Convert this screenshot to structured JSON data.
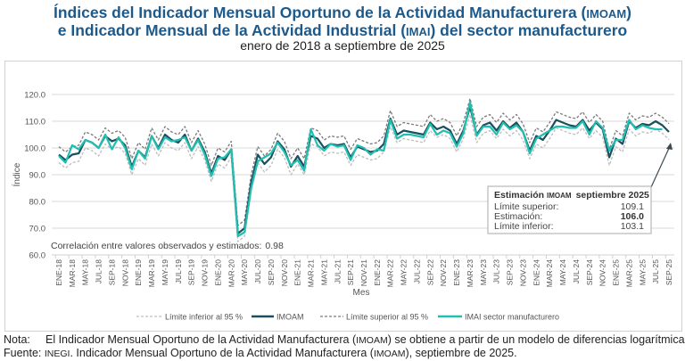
{
  "title": {
    "line1_a": "Índices del Indicador Mensual Oportuno de la Actividad Manufacturera (",
    "line1_abbr": "IMOAM",
    "line1_b": ")",
    "line2_a": "e Indicador Mensual de la Actividad Industrial (",
    "line2_abbr": "IMAI",
    "line2_b": ") del sector manufacturero",
    "subtitle": "enero de 2018 a septiembre de 2025"
  },
  "colors": {
    "imoam": "#1b4f5e",
    "imai": "#20bfb0",
    "upper": "#7a7a7a",
    "lower": "#bdbdbd",
    "title": "#1d5a8c"
  },
  "chart_data": {
    "type": "line",
    "xlabel": "Mes",
    "ylabel": "Índice",
    "ylim": [
      60,
      120
    ],
    "yticks": [
      "60.0",
      "70.0",
      "80.0",
      "90.0",
      "100.0",
      "110.0",
      "120.0"
    ],
    "grid": true,
    "legend_placement": "bottom",
    "x_ticks": [
      "ENE-18",
      "MAR-18",
      "MAY-18",
      "JUL-18",
      "SEP-18",
      "NOV-18",
      "ENE-19",
      "MAR-19",
      "MAY-19",
      "JUL-19",
      "SEP-19",
      "NOV-19",
      "ENE-20",
      "MAR-20",
      "MAY-20",
      "JUL-20",
      "SEP-20",
      "NOV-20",
      "ENE-21",
      "MAR-21",
      "MAY-21",
      "JUL-21",
      "SEP-21",
      "NOV-21",
      "ENE-22",
      "MAR-22",
      "MAY-22",
      "JUL-22",
      "SEP-22",
      "NOV-22",
      "ENE-23",
      "MAR-23",
      "MAY-23",
      "JUL-23",
      "SEP-23",
      "NOV-23",
      "ENE-24",
      "MAR-24",
      "MAY-24",
      "JUL-24",
      "SEP-24",
      "NOV-24",
      "ENE-25",
      "MAR-25",
      "MAY-25",
      "JUL-25",
      "SEP-25"
    ],
    "x_start": "2018-01",
    "series": [
      {
        "name": "Límite inferior al 95 %",
        "key": "lower",
        "style": "dashed",
        "values": [
          94.5,
          92.5,
          94.5,
          95,
          100,
          99,
          97,
          101.5,
          99.5,
          100.5,
          98,
          90,
          96,
          93.5,
          101.5,
          97,
          102,
          100,
          99,
          102,
          96,
          100.5,
          95.5,
          87.5,
          94,
          92.5,
          96.5,
          65,
          67,
          84,
          94.5,
          91,
          93.5,
          99.5,
          96.5,
          90,
          94,
          90,
          101.5,
          100.5,
          97,
          98.5,
          98,
          98.5,
          93.5,
          97.5,
          96.5,
          95.5,
          96,
          98.5,
          108,
          102,
          103.5,
          103,
          102.5,
          102,
          106.5,
          104,
          105,
          103.5,
          98.5,
          103.5,
          112.5,
          102,
          105.5,
          106.5,
          103.5,
          107,
          104.5,
          106.5,
          103,
          96,
          101.5,
          100,
          103.5,
          107.5,
          106.5,
          105.5,
          105,
          107.5,
          103.5,
          106.5,
          104,
          93.5,
          100.5,
          98.5,
          107,
          104.5,
          106,
          105.5,
          107,
          105.5,
          103.1
        ]
      },
      {
        "name": "IMOAM",
        "key": "imoam",
        "style": "solid",
        "values": [
          97.5,
          95.5,
          97.5,
          98,
          103,
          102,
          100,
          104.5,
          102.5,
          103.5,
          101,
          93,
          99,
          96.5,
          104.5,
          100,
          105,
          103,
          102,
          105,
          99,
          103.5,
          98.5,
          90.5,
          97,
          95.5,
          99.5,
          68,
          70,
          87,
          97.5,
          94,
          96.5,
          102.5,
          99.5,
          93,
          97,
          93,
          104.5,
          103.5,
          100,
          101.5,
          101,
          101.5,
          96.5,
          100.5,
          99.5,
          98.5,
          99,
          101.5,
          111,
          105,
          106.5,
          106,
          105.5,
          105,
          109.5,
          107,
          108,
          106.5,
          101.5,
          106.5,
          115.5,
          105,
          108.5,
          109.5,
          106.5,
          110,
          107.5,
          109.5,
          106,
          99,
          104.5,
          103,
          106.5,
          110.5,
          109.5,
          108.5,
          108,
          110.5,
          106.5,
          109.5,
          107,
          96.5,
          103.5,
          101.5,
          110,
          107.5,
          109,
          108.5,
          110,
          108.5,
          106
        ]
      },
      {
        "name": "Límite superior al 95 %",
        "key": "upper",
        "style": "dashed",
        "values": [
          100.5,
          98.5,
          100.5,
          101,
          106,
          105,
          103,
          107.5,
          105.5,
          106.5,
          104,
          96,
          102,
          99.5,
          107.5,
          103,
          108,
          106,
          105,
          108,
          102,
          106.5,
          101.5,
          93.5,
          100,
          98.5,
          102.5,
          71,
          73,
          90,
          100.5,
          97,
          99.5,
          105.5,
          102.5,
          96,
          100,
          96,
          107.5,
          106.5,
          103,
          104.5,
          104,
          104.5,
          99.5,
          103.5,
          102.5,
          101.5,
          102,
          104.5,
          114,
          108,
          109.5,
          109,
          108.5,
          108,
          112.5,
          110,
          111,
          109.5,
          104.5,
          109.5,
          118.5,
          108,
          111.5,
          112.5,
          109.5,
          113,
          110.5,
          112.5,
          109,
          102,
          107.5,
          106,
          109.5,
          113.5,
          112.5,
          111.5,
          111,
          113.5,
          109.5,
          112.5,
          110,
          99.5,
          106.5,
          104.5,
          113,
          110.5,
          112,
          111.5,
          113,
          111.5,
          109.1
        ]
      },
      {
        "name": "IMAI sector manufacturero",
        "key": "imai",
        "style": "solid",
        "values": [
          97,
          94.5,
          101,
          99.5,
          103,
          102,
          100,
          105,
          99.5,
          104,
          100,
          92,
          99,
          96,
          104.5,
          99.5,
          104,
          102.5,
          103,
          104,
          99,
          103,
          97.5,
          89.5,
          96,
          96.5,
          99.5,
          67,
          68.5,
          85,
          95,
          96.5,
          98,
          102,
          98.5,
          93.5,
          95.5,
          91.5,
          107,
          101,
          99,
          101.5,
          100.5,
          101,
          95.5,
          101,
          100,
          97.5,
          99.5,
          99,
          110.5,
          103.5,
          105,
          105,
          104.5,
          104,
          109,
          105,
          106.5,
          105.5,
          100.5,
          105.5,
          117,
          104.5,
          108,
          108,
          105,
          109.5,
          107,
          108.5,
          106,
          98,
          103.5,
          105,
          106.5,
          108,
          108,
          107.5,
          107.5,
          110,
          105,
          110,
          107.5,
          99,
          103,
          103,
          110.5,
          107,
          108.5,
          107.5,
          107,
          107
        ]
      }
    ],
    "annotations": {
      "correlation_label": "Correlación entre valores observados y estimados:",
      "correlation_value": "0.98",
      "box": {
        "title_a": "Estimación",
        "title_abbr": "IMOAM",
        "title_b": "septiembre 2025",
        "rows": [
          {
            "label": "Límite superior:",
            "value": "109.1"
          },
          {
            "label": "Estimación:",
            "value": "106.0"
          },
          {
            "label": "Límite inferior:",
            "value": "103.1"
          }
        ]
      }
    }
  },
  "notes": {
    "note_label": "Nota:",
    "note_a": "El Indicador Mensual Oportuno de la Actividad Manufacturera (",
    "note_abbr": "IMOAM",
    "note_b": ") se obtiene a partir de un modelo de diferencias logarítmicas.",
    "source_label": "Fuente:",
    "source_abbr": "INEGI",
    "source_a": ". Indicador Mensual Oportuno de la Actividad Manufacturera (",
    "source_abbr2": "IMOAM",
    "source_b": "), septiembre de 2025."
  }
}
